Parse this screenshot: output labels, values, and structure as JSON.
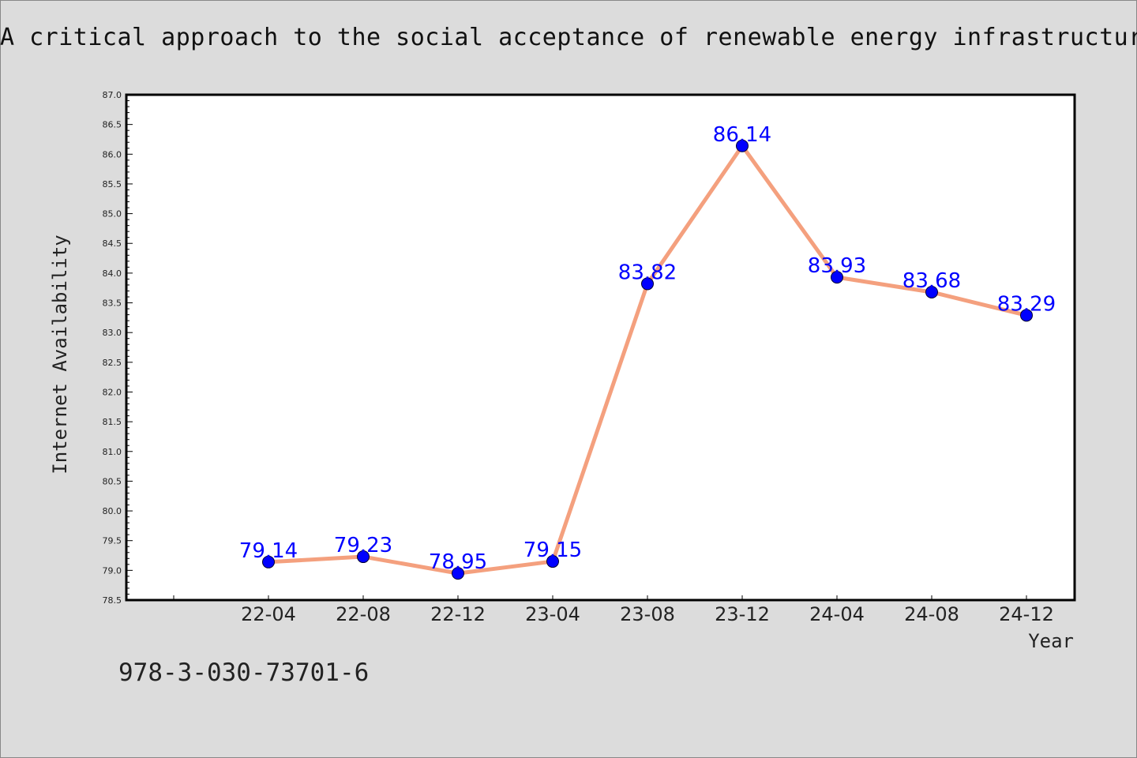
{
  "page": {
    "title": "A critical approach to the social acceptance of renewable energy infrastructures",
    "footer_text": "978-3-030-73701-6"
  },
  "chart_data": {
    "type": "line",
    "title": "A critical approach to the social acceptance of renewable energy infrastructures",
    "xlabel": "Year",
    "ylabel": "Internet Availability",
    "categories": [
      "22-04",
      "22-08",
      "22-12",
      "23-04",
      "23-08",
      "23-12",
      "24-04",
      "24-08",
      "24-12"
    ],
    "series": [
      {
        "values": [
          79.14,
          79.23,
          78.95,
          79.15,
          83.82,
          86.14,
          83.93,
          83.68,
          83.29
        ],
        "data_labels": [
          "79.14",
          "79.23",
          "78.95",
          "79.15",
          "83.82",
          "86.14",
          "83.93",
          "83.68",
          "83.29"
        ]
      }
    ],
    "ylim": [
      78.5,
      87.0
    ],
    "yticks": [
      "78.5",
      "79.0",
      "79.5",
      "80.0",
      "80.5",
      "81.0",
      "81.5",
      "82.0",
      "82.5",
      "83.0",
      "83.5",
      "84.0",
      "84.5",
      "85.0",
      "85.5",
      "86.0",
      "86.5",
      "87.0"
    ],
    "grid": false,
    "colors": {
      "line": "#f4a07e",
      "marker": "#0000ff",
      "data_label": "#0000ff",
      "plot_background": "#ffffff",
      "page_background": "#dcdcdc"
    }
  }
}
